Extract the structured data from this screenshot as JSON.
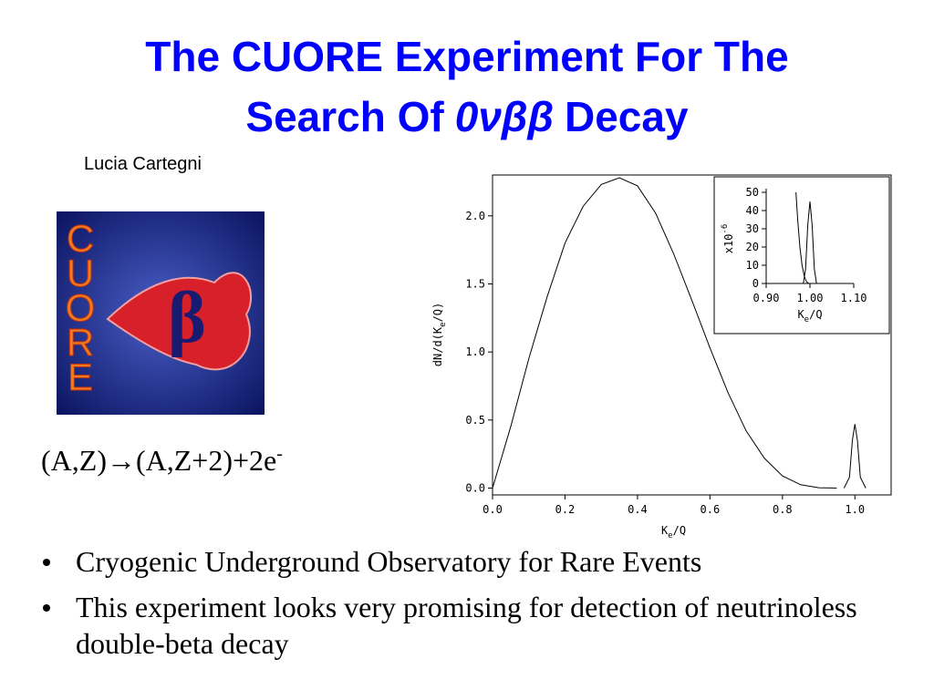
{
  "slide": {
    "title": {
      "line1": "The CUORE Experiment For The",
      "line2_start": "Search Of",
      "line2_italic": "0νββ",
      "line2_end": "Decay"
    },
    "author": "Lucia Cartegni",
    "logo": {
      "letters": [
        "C",
        "U",
        "O",
        "R",
        "E"
      ],
      "symbol": "β"
    },
    "equation": {
      "text": "(A,Z)→(A,Z+2)+2e",
      "superscript": "-"
    },
    "bullets": [
      "Cryogenic Underground Observatory for Rare Events",
      "This experiment looks very promising for detection of neutrinoless double-beta decay"
    ]
  },
  "chart_data": [
    {
      "type": "line",
      "ylabel": [
        "dN/d(K",
        "e",
        "/Q)"
      ],
      "xlabel": [
        "K",
        "e",
        "/Q"
      ],
      "xlim": [
        0,
        1.1
      ],
      "ylim": [
        -0.05,
        2.3
      ],
      "xticks": [
        {
          "value": 0,
          "label": "0.0"
        },
        {
          "value": 0.2,
          "label": "0.2"
        },
        {
          "value": 0.4,
          "label": "0.4"
        },
        {
          "value": 0.6,
          "label": "0.6"
        },
        {
          "value": 0.8,
          "label": "0.8"
        },
        {
          "value": 1,
          "label": "1.0"
        }
      ],
      "yticks": [
        {
          "value": 0,
          "label": "0.0"
        },
        {
          "value": 0.5,
          "label": "0.5"
        },
        {
          "value": 1,
          "label": "1.0"
        },
        {
          "value": 1.5,
          "label": "1.5"
        },
        {
          "value": 2,
          "label": "2.0"
        }
      ],
      "series": [
        {
          "color": "#000000",
          "x": [
            0,
            0.05,
            0.1,
            0.15,
            0.2,
            0.25,
            0.3,
            0.35,
            0.4,
            0.45,
            0.5,
            0.55,
            0.6,
            0.65,
            0.7,
            0.75,
            0.8,
            0.85,
            0.9,
            0.95
          ],
          "values": [
            0,
            0.45,
            0.95,
            1.4,
            1.8,
            2.07,
            2.23,
            2.28,
            2.22,
            2.02,
            1.72,
            1.38,
            1.03,
            0.7,
            0.42,
            0.22,
            0.09,
            0.025,
            0.003,
            0
          ]
        },
        {
          "color": "#000000",
          "x": [
            0.97,
            0.985,
            0.993,
            1.0,
            1.007,
            1.015,
            1.03
          ],
          "values": [
            0,
            0.08,
            0.35,
            0.47,
            0.35,
            0.08,
            0
          ]
        }
      ]
    },
    {
      "type": "line",
      "ylabel": [
        "x10",
        "-6"
      ],
      "xlabel": [
        "K",
        "e",
        "/Q"
      ],
      "xlim": [
        0.9,
        1.1
      ],
      "ylim": [
        0,
        50
      ],
      "xticks": [
        {
          "value": 0.9,
          "label": "0.90"
        },
        {
          "value": 1,
          "label": "1.00"
        },
        {
          "value": 1.1,
          "label": "1.10"
        }
      ],
      "yticks": [
        0,
        10,
        20,
        30,
        40,
        50
      ],
      "series": [
        {
          "color": "#000000",
          "x": [
            0.968,
            0.972,
            0.977,
            0.982,
            0.987,
            0.992,
            0.997
          ],
          "values": [
            50,
            35,
            20,
            10,
            4,
            1,
            0
          ]
        },
        {
          "color": "#000000",
          "x": [
            0.985,
            0.99,
            0.995,
            1.0,
            1.005,
            1.01,
            1.015
          ],
          "values": [
            0,
            8,
            32,
            45,
            32,
            8,
            0
          ]
        }
      ]
    }
  ]
}
